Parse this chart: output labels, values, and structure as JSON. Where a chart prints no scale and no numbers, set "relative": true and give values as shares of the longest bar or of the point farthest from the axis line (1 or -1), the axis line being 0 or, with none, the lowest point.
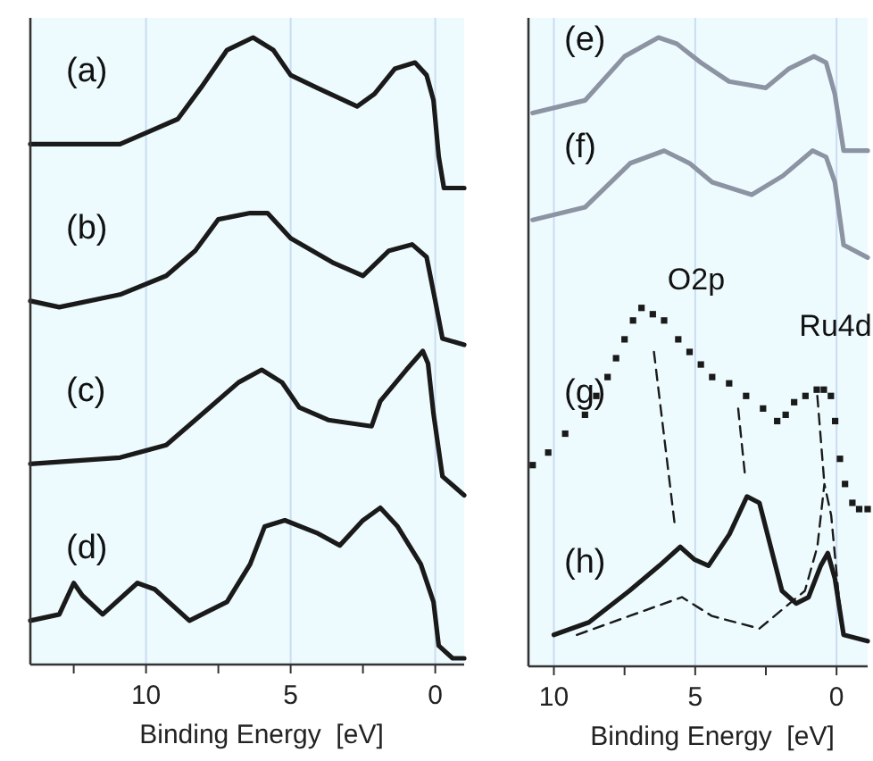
{
  "chart_data": [
    {
      "type": "line",
      "relative": true,
      "xlabel": "Binding Energy  [eV]",
      "xlim": [
        14,
        -1
      ],
      "xticks": [
        {
          "value": 12.5,
          "label": null
        },
        10,
        {
          "value": 7.5,
          "label": null
        },
        5,
        {
          "value": 2.5,
          "label": null
        },
        0
      ],
      "grid": "x",
      "legend": false,
      "series": [
        {
          "name": "(a)",
          "color": "#1a1a1a",
          "x": [
            14.0,
            10.9,
            9.9,
            8.9,
            8.1,
            7.2,
            6.3,
            5.6,
            5.0,
            4.1,
            2.7,
            2.1,
            1.4,
            0.7,
            0.3,
            0.06,
            -0.12,
            -0.3,
            -1.0
          ],
          "values": [
            0.83,
            0.83,
            0.85,
            0.87,
            0.92,
            0.98,
            1.0,
            0.98,
            0.94,
            0.92,
            0.89,
            0.91,
            0.95,
            0.96,
            0.94,
            0.9,
            0.81,
            0.76,
            0.76
          ]
        },
        {
          "name": "(b)",
          "color": "#1a1a1a",
          "x": [
            14.0,
            13.0,
            10.9,
            9.3,
            8.3,
            7.5,
            6.4,
            5.8,
            5.0,
            3.5,
            2.5,
            1.6,
            0.8,
            0.3,
            0.0,
            -0.25,
            -1.0
          ],
          "values": [
            0.58,
            0.57,
            0.59,
            0.62,
            0.66,
            0.71,
            0.72,
            0.72,
            0.68,
            0.64,
            0.62,
            0.66,
            0.67,
            0.65,
            0.58,
            0.52,
            0.51
          ]
        },
        {
          "name": "(c)",
          "color": "#1a1a1a",
          "x": [
            14.0,
            10.9,
            9.3,
            7.8,
            6.8,
            6.0,
            5.3,
            4.7,
            3.7,
            2.2,
            1.9,
            1.0,
            0.43,
            0.25,
            0.06,
            -0.25,
            -1.0
          ],
          "values": [
            0.32,
            0.33,
            0.35,
            0.41,
            0.45,
            0.47,
            0.45,
            0.41,
            0.39,
            0.38,
            0.42,
            0.47,
            0.5,
            0.48,
            0.4,
            0.3,
            0.27
          ]
        },
        {
          "name": "(d)",
          "color": "#1a1a1a",
          "x": [
            14.0,
            13.0,
            12.5,
            12.2,
            11.5,
            10.3,
            9.7,
            8.5,
            7.2,
            6.4,
            5.9,
            5.2,
            4.1,
            3.3,
            2.5,
            1.9,
            1.3,
            0.5,
            0.06,
            -0.12,
            -0.6,
            -1.0
          ],
          "values": [
            0.07,
            0.08,
            0.13,
            0.11,
            0.08,
            0.13,
            0.12,
            0.07,
            0.1,
            0.16,
            0.22,
            0.23,
            0.21,
            0.19,
            0.23,
            0.25,
            0.22,
            0.16,
            0.1,
            0.03,
            0.01,
            0.01
          ]
        }
      ]
    },
    {
      "type": "line",
      "relative": true,
      "xlabel": "Binding Energy  [eV]",
      "xlim": [
        10.9,
        -1.1
      ],
      "xticks": [
        10,
        {
          "value": 7.5,
          "label": null
        },
        5,
        {
          "value": 2.5,
          "label": null
        },
        0
      ],
      "grid": "x",
      "legend": false,
      "annotations": [
        "O2p",
        "Ru4d"
      ],
      "series": [
        {
          "name": "(e)",
          "color": "#8c93a3",
          "x": [
            10.75,
            8.9,
            7.5,
            6.3,
            5.65,
            4.8,
            3.8,
            2.5,
            1.7,
            0.8,
            0.37,
            0.06,
            -0.25,
            -1.1
          ],
          "values": [
            0.88,
            0.9,
            0.97,
            1.0,
            0.99,
            0.96,
            0.93,
            0.92,
            0.95,
            0.97,
            0.96,
            0.91,
            0.82,
            0.82
          ]
        },
        {
          "name": "(f)",
          "color": "#8c93a3",
          "x": [
            10.75,
            8.9,
            7.3,
            6.1,
            5.2,
            4.4,
            3.0,
            1.9,
            0.85,
            0.37,
            0.06,
            -0.25,
            -1.1
          ],
          "values": [
            0.71,
            0.73,
            0.8,
            0.82,
            0.8,
            0.77,
            0.75,
            0.78,
            0.82,
            0.81,
            0.77,
            0.67,
            0.65
          ]
        },
        {
          "name": "(g)",
          "type": "scatter",
          "marker": "square",
          "color": "#1a1a1a",
          "x": [
            10.75,
            10.2,
            9.6,
            8.9,
            8.5,
            8.1,
            7.8,
            7.5,
            7.2,
            6.9,
            6.5,
            6.1,
            5.6,
            5.2,
            4.8,
            4.4,
            3.8,
            3.2,
            2.6,
            2.1,
            1.8,
            1.5,
            1.1,
            0.7,
            0.45,
            0.2,
            0.05,
            -0.12,
            -0.3,
            -0.56,
            -0.8,
            -1.1
          ],
          "values": [
            0.32,
            0.34,
            0.37,
            0.4,
            0.43,
            0.46,
            0.49,
            0.52,
            0.55,
            0.57,
            0.56,
            0.55,
            0.52,
            0.5,
            0.48,
            0.46,
            0.45,
            0.43,
            0.41,
            0.39,
            0.4,
            0.42,
            0.43,
            0.44,
            0.44,
            0.43,
            0.39,
            0.33,
            0.29,
            0.26,
            0.25,
            0.25
          ]
        },
        {
          "name": "(h)",
          "color": "#1a1a1a",
          "x": [
            10.0,
            8.76,
            7.33,
            6.27,
            5.53,
            5.03,
            4.53,
            3.79,
            3.17,
            2.73,
            1.93,
            1.43,
            0.99,
            0.56,
            0.31,
            0.06,
            -0.25,
            -1.1
          ],
          "values": [
            0.05,
            0.07,
            0.12,
            0.16,
            0.19,
            0.17,
            0.16,
            0.21,
            0.27,
            0.26,
            0.12,
            0.1,
            0.11,
            0.16,
            0.18,
            0.14,
            0.05,
            0.04
          ]
        },
        {
          "color": "#1a1a1a",
          "line_style": "dashed",
          "x": [
            9.19,
            7.33,
            5.47,
            4.41,
            2.73,
            1.93,
            1.12,
            0.68,
            0.43,
            0.19,
            -0.06,
            -0.25
          ],
          "values": [
            0.05,
            0.08,
            0.11,
            0.08,
            0.06,
            0.09,
            0.12,
            0.19,
            0.29,
            0.24,
            0.12,
            0.05
          ]
        },
        {
          "color": "#1a1a1a",
          "line_style": "dashed",
          "x": [
            6.46,
            5.71
          ],
          "values": [
            0.5,
            0.22
          ]
        },
        {
          "color": "#1a1a1a",
          "line_style": "dashed",
          "x": [
            3.48,
            3.23
          ],
          "values": [
            0.41,
            0.3
          ]
        },
        {
          "color": "#1a1a1a",
          "line_style": "dashed",
          "x": [
            0.68,
            0.43
          ],
          "values": [
            0.43,
            0.29
          ]
        }
      ]
    }
  ]
}
